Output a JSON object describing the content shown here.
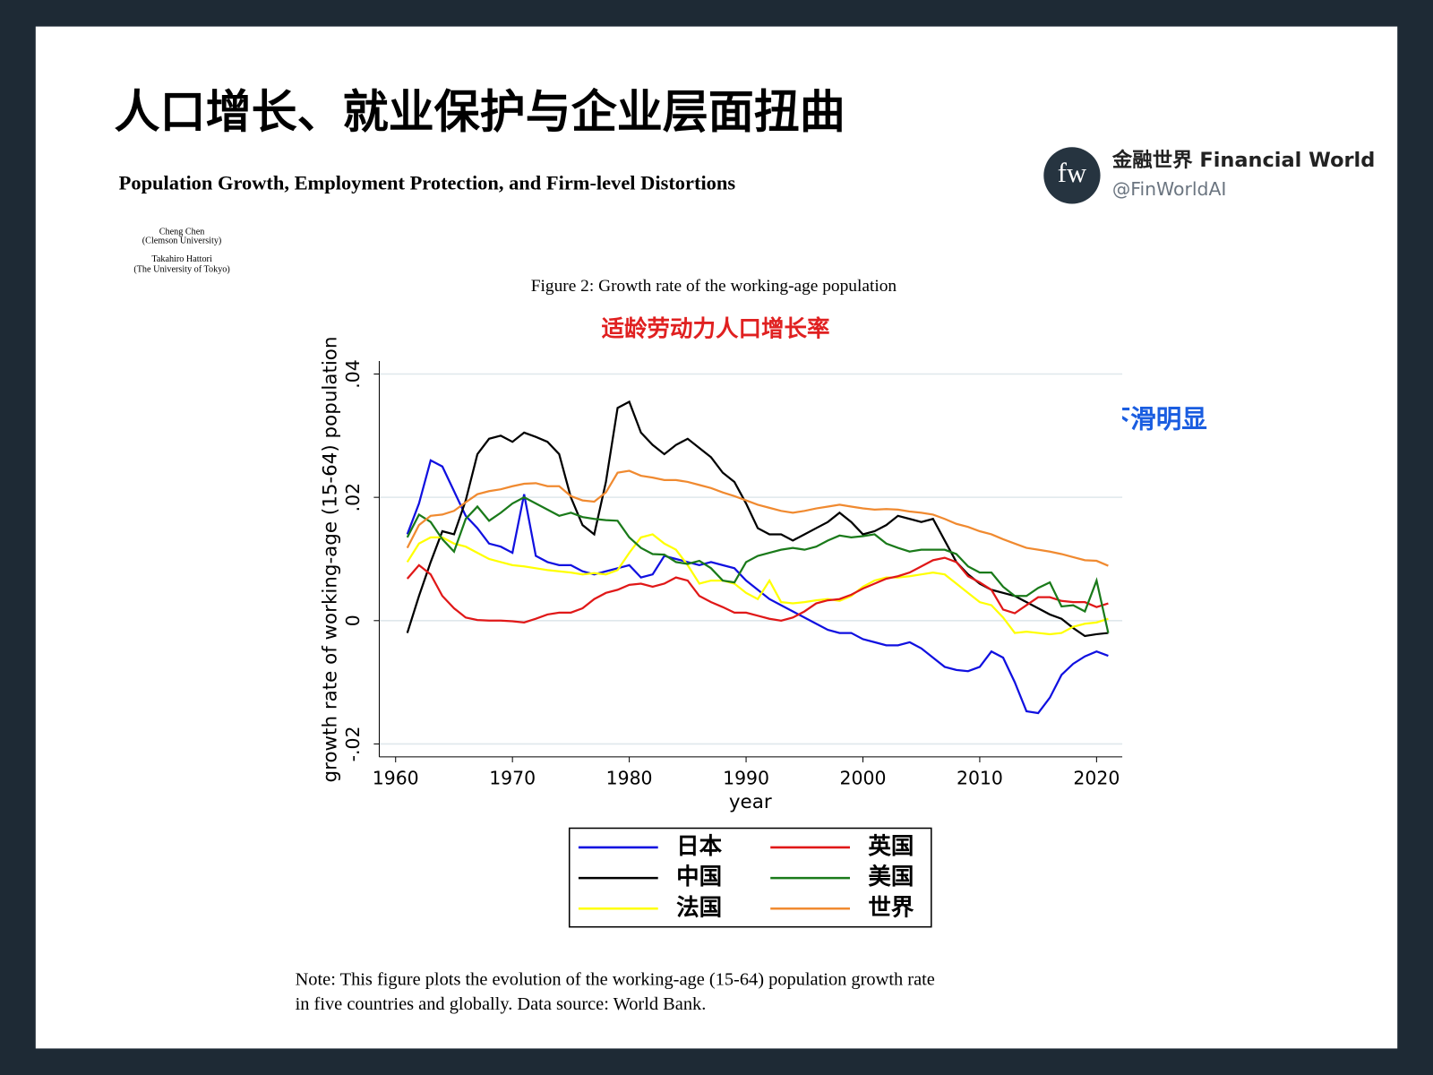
{
  "header": {
    "title": "人口增长、就业保护与企业层面扭曲",
    "subtitle": "Population Growth, Employment Protection, and Firm-level Distortions"
  },
  "brand": {
    "logo": "fw",
    "name": "金融世界 Financial World",
    "handle": "@FinWorldAI"
  },
  "authors": [
    "Cheng Chen",
    "(Clemson University)",
    "Takahiro Hattori",
    "(The University of Tokyo)"
  ],
  "figure_caption": "Figure 2: Growth rate of the working-age population",
  "note": [
    "Note: This figure plots the evolution of the working-age (15-64) population growth rate",
    "in five countries and globally. Data source: World Bank."
  ],
  "chart_data": {
    "type": "line",
    "title": "适龄劳动力人口增长率",
    "annotation": "中国，劳动力增速下滑明显",
    "x_label": "year",
    "y_label": "growth rate of working-age (15-64) population",
    "x": [
      1961,
      1962,
      1963,
      1964,
      1965,
      1966,
      1967,
      1968,
      1969,
      1970,
      1971,
      1972,
      1973,
      1974,
      1975,
      1976,
      1977,
      1978,
      1979,
      1980,
      1981,
      1982,
      1983,
      1984,
      1985,
      1986,
      1987,
      1988,
      1989,
      1990,
      1991,
      1992,
      1993,
      1994,
      1995,
      1996,
      1997,
      1998,
      1999,
      2000,
      2001,
      2002,
      2003,
      2004,
      2005,
      2006,
      2007,
      2008,
      2009,
      2010,
      2011,
      2012,
      2013,
      2014,
      2015,
      2016,
      2017,
      2018,
      2019,
      2020,
      2021
    ],
    "xlim": [
      1958.6,
      2022.2
    ],
    "xticks": [
      1960,
      1970,
      1980,
      1990,
      2000,
      2010,
      2020
    ],
    "ylim": [
      -0.0221,
      0.0421
    ],
    "yticks": [
      {
        "value": -0.02,
        "label": "-.02"
      },
      0,
      {
        "value": 0.02,
        "label": ".02"
      },
      {
        "value": 0.04,
        "label": ".04"
      }
    ],
    "grid": true,
    "series": [
      {
        "name": "日本",
        "color": "#1010e0",
        "values": [
          0.014,
          0.019,
          0.026,
          0.025,
          0.021,
          0.017,
          0.015,
          0.0125,
          0.012,
          0.011,
          0.0205,
          0.0105,
          0.0095,
          0.009,
          0.009,
          0.008,
          0.0075,
          0.008,
          0.0085,
          0.009,
          0.007,
          0.0075,
          0.0105,
          0.01,
          0.0095,
          0.009,
          0.0095,
          0.009,
          0.0085,
          0.0065,
          0.005,
          0.0035,
          0.0025,
          0.0015,
          0.0005,
          -0.0005,
          -0.0015,
          -0.002,
          -0.002,
          -0.003,
          -0.0035,
          -0.004,
          -0.004,
          -0.0035,
          -0.0045,
          -0.006,
          -0.0075,
          -0.008,
          -0.0082,
          -0.0075,
          -0.005,
          -0.006,
          -0.01,
          -0.0147,
          -0.015,
          -0.0125,
          -0.0088,
          -0.007,
          -0.0058,
          -0.005,
          -0.0057
        ]
      },
      {
        "name": "中国",
        "color": "#000000",
        "values": [
          -0.002,
          0.004,
          0.0095,
          0.0145,
          0.014,
          0.0195,
          0.027,
          0.0295,
          0.03,
          0.029,
          0.0305,
          0.0298,
          0.029,
          0.027,
          0.02,
          0.0155,
          0.014,
          0.0225,
          0.0345,
          0.0355,
          0.0305,
          0.0285,
          0.027,
          0.0285,
          0.0295,
          0.028,
          0.0265,
          0.024,
          0.0225,
          0.019,
          0.015,
          0.014,
          0.014,
          0.013,
          0.014,
          0.015,
          0.016,
          0.0175,
          0.016,
          0.014,
          0.0145,
          0.0155,
          0.017,
          0.0165,
          0.016,
          0.0165,
          0.013,
          0.0095,
          0.0075,
          0.006,
          0.005,
          0.0045,
          0.004,
          0.003,
          0.002,
          0.001,
          0.0003,
          -0.0012,
          -0.0025,
          -0.0022,
          -0.002
        ]
      },
      {
        "name": "法国",
        "color": "#ffff00",
        "values": [
          0.0095,
          0.0125,
          0.0135,
          0.0135,
          0.0125,
          0.012,
          0.011,
          0.01,
          0.0095,
          0.009,
          0.0088,
          0.0085,
          0.0082,
          0.008,
          0.0078,
          0.0075,
          0.0077,
          0.0075,
          0.0082,
          0.011,
          0.0135,
          0.014,
          0.0125,
          0.0115,
          0.009,
          0.006,
          0.0065,
          0.0065,
          0.006,
          0.0045,
          0.0035,
          0.0065,
          0.003,
          0.0028,
          0.003,
          0.0033,
          0.0035,
          0.0032,
          0.004,
          0.0055,
          0.0065,
          0.007,
          0.007,
          0.0072,
          0.0075,
          0.0078,
          0.0075,
          0.006,
          0.0045,
          0.003,
          0.0025,
          0.0005,
          -0.002,
          -0.0018,
          -0.002,
          -0.0022,
          -0.002,
          -0.001,
          -0.0005,
          -0.0003,
          0.0003
        ]
      },
      {
        "name": "英国",
        "color": "#e01818",
        "values": [
          0.0068,
          0.009,
          0.0075,
          0.004,
          0.002,
          0.0005,
          0.0001,
          0,
          0,
          -0.0001,
          -0.0003,
          0.0003,
          0.001,
          0.0013,
          0.0013,
          0.002,
          0.0035,
          0.0045,
          0.005,
          0.0058,
          0.006,
          0.0055,
          0.006,
          0.007,
          0.0065,
          0.004,
          0.003,
          0.0022,
          0.0013,
          0.0013,
          0.0008,
          0.0003,
          0,
          0.0005,
          0.0015,
          0.0028,
          0.0033,
          0.0035,
          0.0042,
          0.0052,
          0.006,
          0.0068,
          0.0072,
          0.0078,
          0.0088,
          0.0098,
          0.0102,
          0.0095,
          0.0072,
          0.0062,
          0.005,
          0.0018,
          0.0012,
          0.0025,
          0.0038,
          0.0038,
          0.0032,
          0.003,
          0.003,
          0.0022,
          0.0028
        ]
      },
      {
        "name": "美国",
        "color": "#1a7a1a",
        "values": [
          0.0135,
          0.0172,
          0.016,
          0.0132,
          0.0112,
          0.0165,
          0.0185,
          0.0162,
          0.0175,
          0.019,
          0.02,
          0.019,
          0.018,
          0.017,
          0.0175,
          0.0168,
          0.0165,
          0.0163,
          0.0162,
          0.0135,
          0.0118,
          0.0108,
          0.0107,
          0.0095,
          0.0092,
          0.0097,
          0.0085,
          0.0065,
          0.0062,
          0.0095,
          0.0105,
          0.011,
          0.0115,
          0.0118,
          0.0115,
          0.012,
          0.013,
          0.0138,
          0.0135,
          0.0137,
          0.014,
          0.0125,
          0.0118,
          0.0112,
          0.0115,
          0.0115,
          0.0115,
          0.0108,
          0.0088,
          0.0078,
          0.0078,
          0.0055,
          0.004,
          0.004,
          0.0053,
          0.0062,
          0.0023,
          0.0025,
          0.0015,
          0.0065,
          -0.002
        ]
      },
      {
        "name": "世界",
        "color": "#f08a30",
        "values": [
          0.0118,
          0.0155,
          0.017,
          0.0172,
          0.0178,
          0.0192,
          0.0205,
          0.021,
          0.0213,
          0.0218,
          0.0222,
          0.0223,
          0.0218,
          0.0218,
          0.0202,
          0.0195,
          0.0193,
          0.0208,
          0.024,
          0.0243,
          0.0235,
          0.0232,
          0.0228,
          0.0228,
          0.0225,
          0.022,
          0.0215,
          0.0208,
          0.0202,
          0.0195,
          0.0188,
          0.0183,
          0.0178,
          0.0175,
          0.0178,
          0.0182,
          0.0185,
          0.0188,
          0.0185,
          0.0182,
          0.018,
          0.0181,
          0.018,
          0.0177,
          0.0175,
          0.0172,
          0.0165,
          0.0157,
          0.0152,
          0.0145,
          0.014,
          0.0132,
          0.0125,
          0.0118,
          0.0115,
          0.0112,
          0.0108,
          0.0103,
          0.0098,
          0.0097,
          0.0089
        ]
      }
    ]
  }
}
